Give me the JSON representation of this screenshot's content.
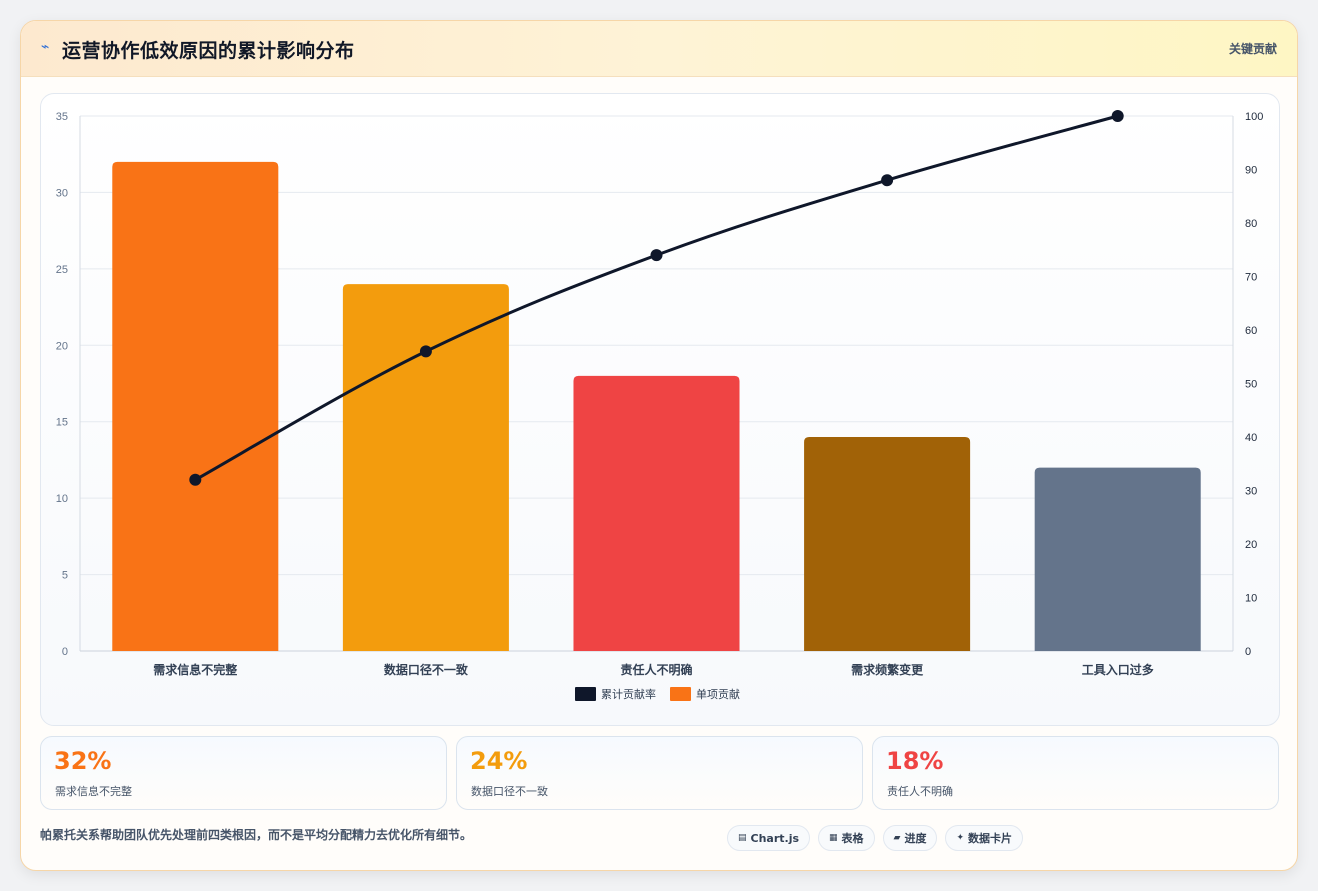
{
  "header": {
    "icon": "lightning-icon",
    "title": "运营协作低效原因的累计影响分布",
    "tag": "关键贡献"
  },
  "chart_data": {
    "type": "bar",
    "title": "",
    "categories": [
      "需求信息不完整",
      "数据口径不一致",
      "责任人不明确",
      "需求频繁变更",
      "工具入口过多"
    ],
    "series": [
      {
        "name": "单项贡献",
        "type": "bar",
        "axis": "left",
        "values": [
          32,
          24,
          18,
          14,
          12
        ],
        "colors": [
          "#f97316",
          "#f39c0d",
          "#ef4444",
          "#a16207",
          "#64748b"
        ]
      },
      {
        "name": "累计贡献率",
        "type": "line",
        "axis": "right",
        "values": [
          32,
          56,
          74,
          88,
          100
        ],
        "color": "#0f172a"
      }
    ],
    "ylim_left": [
      0,
      35
    ],
    "yticks_left": [
      0,
      5,
      10,
      15,
      20,
      25,
      30,
      35
    ],
    "ylim_right": [
      0,
      100
    ],
    "yticks_right": [
      0,
      10,
      20,
      30,
      40,
      50,
      60,
      70,
      80,
      90,
      100
    ],
    "legend": {
      "position": "bottom",
      "order": [
        "累计贡献率",
        "单项贡献"
      ]
    },
    "grid": true
  },
  "stats": [
    {
      "value": "32%",
      "label": "需求信息不完整",
      "color": "#f97316"
    },
    {
      "value": "24%",
      "label": "数据口径不一致",
      "color": "#f39c0d"
    },
    {
      "value": "18%",
      "label": "责任人不明确",
      "color": "#ef4444"
    }
  ],
  "footer": {
    "note": "帕累托关系帮助团队优先处理前四类根因，而不是平均分配精力去优化所有细节。",
    "pills": [
      {
        "icon": "chart-icon",
        "glyph": "▤",
        "label": "Chart.js"
      },
      {
        "icon": "table-icon",
        "glyph": "▦",
        "label": "表格"
      },
      {
        "icon": "progress-icon",
        "glyph": "▰",
        "label": "进度"
      },
      {
        "icon": "sparkle-icon",
        "glyph": "✦",
        "label": "数据卡片"
      }
    ]
  }
}
